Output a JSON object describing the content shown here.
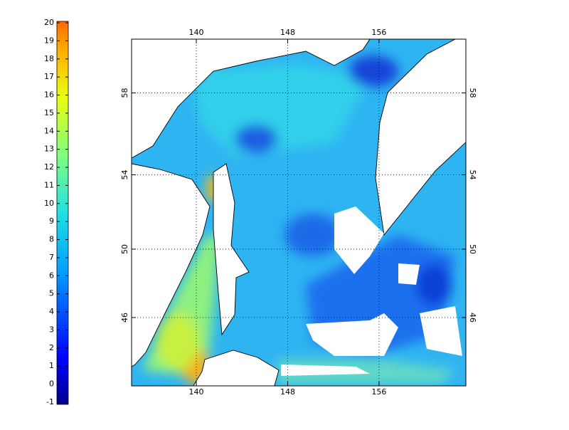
{
  "colorbar": {
    "ticks": [
      -1,
      0,
      1,
      2,
      3,
      4,
      5,
      6,
      7,
      8,
      9,
      10,
      11,
      12,
      13,
      14,
      15,
      16,
      17,
      18,
      19,
      20
    ]
  },
  "map": {
    "lon_ticks": [
      140,
      148,
      156
    ],
    "lat_ticks": [
      46,
      50,
      54,
      58
    ]
  }
}
